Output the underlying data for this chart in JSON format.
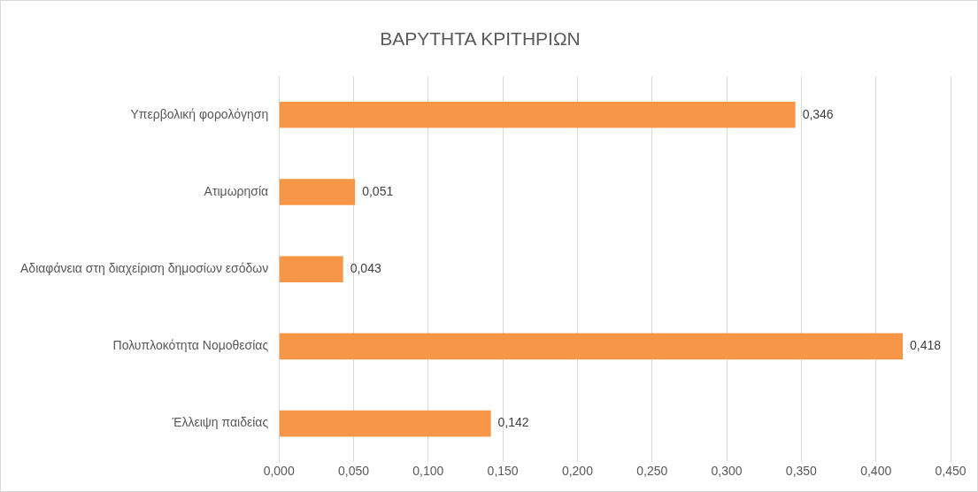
{
  "chart_data": {
    "type": "bar",
    "orientation": "horizontal",
    "title": "ΒΑΡΥΤΗΤΑ ΚΡΙΤΗΡΙΩΝ",
    "categories": [
      "Υπερβολική φορολόγηση",
      "Ατιμωρησία",
      "Αδιαφάνεια στη διαχείριση δημοσίων εσόδων",
      "Πολυπλοκότητα Νομοθεσίας",
      "Έλλειψη παιδείας"
    ],
    "values": [
      0.346,
      0.051,
      0.043,
      0.418,
      0.142
    ],
    "value_labels": [
      "0,346",
      "0,051",
      "0,043",
      "0,418",
      "0,142"
    ],
    "color": "#f79646",
    "xlim": [
      0,
      0.45
    ],
    "xticks": [
      {
        "value": 0,
        "label": "0,000"
      },
      {
        "value": 0.05,
        "label": "0,050"
      },
      {
        "value": 0.1,
        "label": "0,100"
      },
      {
        "value": 0.15,
        "label": "0,150"
      },
      {
        "value": 0.2,
        "label": "0,200"
      },
      {
        "value": 0.25,
        "label": "0,250"
      },
      {
        "value": 0.3,
        "label": "0,300"
      },
      {
        "value": 0.35,
        "label": "0,350"
      },
      {
        "value": 0.4,
        "label": "0,400"
      },
      {
        "value": 0.45,
        "label": "0,450"
      }
    ],
    "grid": "x"
  }
}
